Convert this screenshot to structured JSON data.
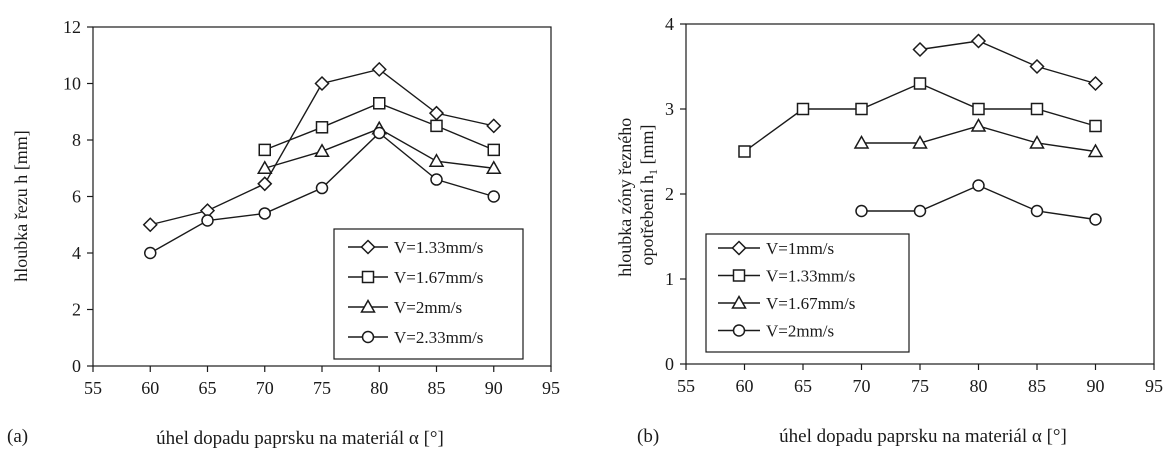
{
  "chart_data": [
    {
      "type": "line",
      "panel_label": "(a)",
      "xlabel": "úhel dopadu paprsku na materiál α [°]",
      "ylabel": "hloubka řezu h [mm]",
      "xlim": [
        55,
        95
      ],
      "ylim": [
        0,
        12
      ],
      "xticks": [
        55,
        60,
        65,
        70,
        75,
        80,
        85,
        90,
        95
      ],
      "yticks": [
        0,
        2,
        4,
        6,
        8,
        10,
        12
      ],
      "grid": false,
      "legend_position": "bottom-right",
      "series": [
        {
          "name": "V=1.33mm/s",
          "marker": "diamond",
          "x": [
            60,
            65,
            70,
            75,
            80,
            85,
            90
          ],
          "y": [
            5.0,
            5.5,
            6.45,
            10.0,
            10.5,
            8.95,
            8.5
          ]
        },
        {
          "name": "V=1.67mm/s",
          "marker": "square",
          "x": [
            70,
            75,
            80,
            85,
            90
          ],
          "y": [
            7.65,
            8.45,
            9.3,
            8.5,
            7.65
          ]
        },
        {
          "name": "V=2mm/s",
          "marker": "triangle",
          "x": [
            70,
            75,
            80,
            85,
            90
          ],
          "y": [
            7.0,
            7.6,
            8.4,
            7.25,
            7.0
          ]
        },
        {
          "name": "V=2.33mm/s",
          "marker": "circle",
          "x": [
            60,
            65,
            70,
            75,
            80,
            85,
            90
          ],
          "y": [
            4.0,
            5.15,
            5.4,
            6.3,
            8.25,
            6.6,
            6.0
          ]
        }
      ]
    },
    {
      "type": "line",
      "panel_label": "(b)",
      "xlabel": "úhel dopadu paprsku na materiál α [°]",
      "ylabel_lines": [
        "hloubka zóny řezného",
        "opotřebení h",
        "1",
        " [mm]"
      ],
      "xlim": [
        55,
        95
      ],
      "ylim": [
        0,
        4
      ],
      "xticks": [
        55,
        60,
        65,
        70,
        75,
        80,
        85,
        90,
        95
      ],
      "yticks": [
        0,
        1,
        2,
        3,
        4
      ],
      "grid": false,
      "legend_position": "bottom-left",
      "series": [
        {
          "name": "V=1mm/s",
          "marker": "diamond",
          "x": [
            75,
            80,
            85,
            90
          ],
          "y": [
            3.7,
            3.8,
            3.5,
            3.3
          ]
        },
        {
          "name": "V=1.33mm/s",
          "marker": "square",
          "x": [
            60,
            65,
            70,
            75,
            80,
            85,
            90
          ],
          "y": [
            2.5,
            3.0,
            3.0,
            3.3,
            3.0,
            3.0,
            2.8
          ]
        },
        {
          "name": "V=1.67mm/s",
          "marker": "triangle",
          "x": [
            70,
            75,
            80,
            85,
            90
          ],
          "y": [
            2.6,
            2.6,
            2.8,
            2.6,
            2.5
          ]
        },
        {
          "name": "V=2mm/s",
          "marker": "circle",
          "x": [
            70,
            75,
            80,
            85,
            90
          ],
          "y": [
            1.8,
            1.8,
            2.1,
            1.8,
            1.7
          ]
        }
      ]
    }
  ]
}
